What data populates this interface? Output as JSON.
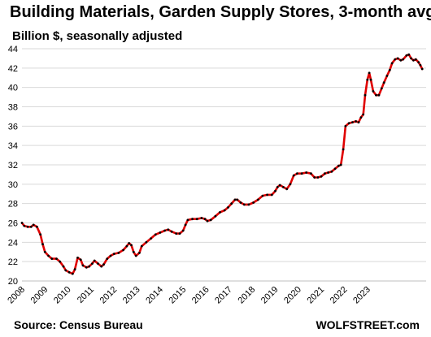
{
  "chart_data": {
    "type": "line",
    "title": "Building Materials, Garden Supply Stores, 3-month avg.",
    "subtitle": "Billion $, seasonally adjusted",
    "xlabel": "",
    "ylabel": "",
    "ylim": [
      20,
      44
    ],
    "y_ticks": [
      "20",
      "22",
      "24",
      "26",
      "28",
      "30",
      "32",
      "34",
      "36",
      "38",
      "40",
      "42",
      "44"
    ],
    "x_ticks": [
      "2008",
      "2009",
      "2010",
      "2011",
      "2012",
      "2013",
      "2014",
      "2015",
      "2016",
      "2017",
      "2018",
      "2019",
      "2020",
      "2021",
      "2022",
      "2023"
    ],
    "grid": "horizontal",
    "line_color": "#e00000",
    "marker_color": "#000000",
    "series": [
      {
        "points": [
          [
            2008.0,
            26.0
          ],
          [
            2008.1,
            25.7
          ],
          [
            2008.25,
            25.6
          ],
          [
            2008.4,
            25.6
          ],
          [
            2008.5,
            25.8
          ],
          [
            2008.65,
            25.6
          ],
          [
            2008.8,
            24.8
          ],
          [
            2008.9,
            23.8
          ],
          [
            2009.0,
            23.0
          ],
          [
            2009.15,
            22.6
          ],
          [
            2009.3,
            22.3
          ],
          [
            2009.5,
            22.3
          ],
          [
            2009.65,
            22.0
          ],
          [
            2009.8,
            21.5
          ],
          [
            2009.9,
            21.1
          ],
          [
            2010.05,
            20.9
          ],
          [
            2010.2,
            20.75
          ],
          [
            2010.3,
            21.2
          ],
          [
            2010.42,
            22.4
          ],
          [
            2010.55,
            22.2
          ],
          [
            2010.65,
            21.6
          ],
          [
            2010.8,
            21.4
          ],
          [
            2010.92,
            21.5
          ],
          [
            2011.05,
            21.8
          ],
          [
            2011.15,
            22.1
          ],
          [
            2011.3,
            21.8
          ],
          [
            2011.45,
            21.5
          ],
          [
            2011.55,
            21.7
          ],
          [
            2011.7,
            22.3
          ],
          [
            2011.85,
            22.6
          ],
          [
            2012.0,
            22.8
          ],
          [
            2012.2,
            22.9
          ],
          [
            2012.4,
            23.2
          ],
          [
            2012.55,
            23.6
          ],
          [
            2012.65,
            23.9
          ],
          [
            2012.75,
            23.7
          ],
          [
            2012.85,
            23.0
          ],
          [
            2012.95,
            22.6
          ],
          [
            2013.1,
            22.9
          ],
          [
            2013.2,
            23.6
          ],
          [
            2013.4,
            24.0
          ],
          [
            2013.6,
            24.4
          ],
          [
            2013.8,
            24.8
          ],
          [
            2014.0,
            25.0
          ],
          [
            2014.2,
            25.2
          ],
          [
            2014.35,
            25.3
          ],
          [
            2014.5,
            25.1
          ],
          [
            2014.7,
            24.9
          ],
          [
            2014.85,
            24.9
          ],
          [
            2015.0,
            25.2
          ],
          [
            2015.1,
            25.8
          ],
          [
            2015.2,
            26.3
          ],
          [
            2015.4,
            26.4
          ],
          [
            2015.6,
            26.4
          ],
          [
            2015.8,
            26.5
          ],
          [
            2015.95,
            26.4
          ],
          [
            2016.05,
            26.2
          ],
          [
            2016.2,
            26.3
          ],
          [
            2016.4,
            26.7
          ],
          [
            2016.6,
            27.1
          ],
          [
            2016.8,
            27.3
          ],
          [
            2016.95,
            27.6
          ],
          [
            2017.1,
            28.0
          ],
          [
            2017.25,
            28.4
          ],
          [
            2017.35,
            28.4
          ],
          [
            2017.5,
            28.1
          ],
          [
            2017.65,
            27.9
          ],
          [
            2017.85,
            27.9
          ],
          [
            2018.05,
            28.1
          ],
          [
            2018.25,
            28.4
          ],
          [
            2018.45,
            28.8
          ],
          [
            2018.65,
            28.9
          ],
          [
            2018.85,
            28.9
          ],
          [
            2019.0,
            29.3
          ],
          [
            2019.1,
            29.7
          ],
          [
            2019.2,
            29.9
          ],
          [
            2019.35,
            29.7
          ],
          [
            2019.5,
            29.5
          ],
          [
            2019.65,
            30.0
          ],
          [
            2019.8,
            30.9
          ],
          [
            2019.95,
            31.1
          ],
          [
            2020.15,
            31.1
          ],
          [
            2020.35,
            31.2
          ],
          [
            2020.55,
            31.1
          ],
          [
            2020.7,
            30.7
          ],
          [
            2020.85,
            30.7
          ],
          [
            2021.0,
            30.8
          ],
          [
            2021.15,
            31.1
          ],
          [
            2021.3,
            31.2
          ],
          [
            2021.45,
            31.3
          ],
          [
            2021.6,
            31.6
          ],
          [
            2021.75,
            31.9
          ],
          [
            2021.85,
            32.0
          ],
          [
            2021.95,
            33.6
          ],
          [
            2022.05,
            36.0
          ],
          [
            2022.2,
            36.3
          ],
          [
            2022.35,
            36.4
          ],
          [
            2022.5,
            36.5
          ],
          [
            2022.62,
            36.4
          ],
          [
            2022.72,
            36.9
          ],
          [
            2022.82,
            37.2
          ],
          [
            2022.9,
            39.2
          ],
          [
            2023.0,
            40.8
          ],
          [
            2023.08,
            41.5
          ],
          [
            2023.15,
            40.8
          ],
          [
            2023.25,
            39.6
          ],
          [
            2023.38,
            39.2
          ],
          [
            2023.5,
            39.2
          ],
          [
            2023.62,
            39.9
          ],
          [
            2023.72,
            40.5
          ],
          [
            2023.85,
            41.2
          ],
          [
            2023.97,
            41.8
          ],
          [
            2024.07,
            42.5
          ],
          [
            2024.2,
            42.9
          ],
          [
            2024.32,
            43.0
          ],
          [
            2024.45,
            42.8
          ],
          [
            2024.55,
            42.9
          ],
          [
            2024.7,
            43.3
          ],
          [
            2024.8,
            43.4
          ],
          [
            2024.9,
            43.0
          ],
          [
            2025.0,
            42.8
          ],
          [
            2025.1,
            42.9
          ],
          [
            2025.22,
            42.6
          ],
          [
            2025.3,
            42.3
          ],
          [
            2025.38,
            41.9
          ]
        ]
      }
    ]
  },
  "footer": {
    "source": "Source: Census Bureau",
    "brand": "WOLFSTREET.com"
  }
}
